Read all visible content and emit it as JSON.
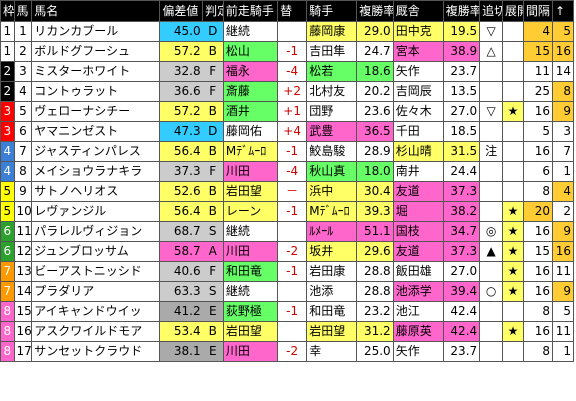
{
  "header": [
    "枠",
    "馬",
    "馬名",
    "偏差値",
    "判定",
    "前走騎手",
    "替",
    "騎手",
    "複勝率",
    "厩舎",
    "複勝率",
    "追切",
    "展開",
    "間隔",
    "↑"
  ],
  "colors": {
    "waku": {
      "1": "#ffffff",
      "2": "#000000",
      "3": "#ff0000",
      "4": "#3b7fd6",
      "5": "#ffff00",
      "6": "#2ca02c",
      "7": "#ff9900",
      "8": "#ff66cc"
    },
    "score": {
      "D": "#33ccff",
      "B": "#ffff66",
      "E": "#aaaaaa",
      "A": "#ff66cc"
    },
    "prev_green": "#66ff66",
    "prev_pink": "#ff66cc",
    "jockey_yellow": "#ffff66",
    "jockey_pink": "#ff66cc",
    "trainer_yellow": "#ffff66",
    "trainer_pink": "#ff66cc",
    "maru_yellow": "#ffff66",
    "kankaku_orange": "#ffcc33",
    "kankaku_blue": "#33ccff",
    "up_yellow": "#ffff66"
  },
  "rows": [
    {
      "waku": "1",
      "ban": "1",
      "name": "リカンカブール",
      "dev": "45.0",
      "grade": "D",
      "prev": "継続",
      "prev_bg": "",
      "sw": "",
      "jockey": "藤岡康",
      "j_bg": "yellow",
      "jrate": "29.0",
      "trainer": "田中克",
      "t_bg": "yellow",
      "trate": "19.5",
      "oi": "▽",
      "ten": "",
      "kan": "4",
      "kan_bg": "yellow",
      "up": "5",
      "up_bg": "orange"
    },
    {
      "waku": "1",
      "ban": "2",
      "name": "ボルドグフーシュ",
      "dev": "57.2",
      "grade": "B",
      "prev": "松山",
      "prev_bg": "green",
      "sw": "-1",
      "jockey": "吉田隼",
      "j_bg": "",
      "jrate": "24.7",
      "trainer": "宮本",
      "t_bg": "pink",
      "trate": "38.9",
      "oi": "△",
      "ten": "",
      "kan": "15",
      "kan_bg": "yellow",
      "up": "16",
      "up_bg": "orange"
    },
    {
      "waku": "2",
      "ban": "3",
      "name": "ミスターホワイト",
      "dev": "32.8",
      "grade": "F",
      "prev": "福永",
      "prev_bg": "pink",
      "sw": "-4",
      "jockey": "松若",
      "j_bg": "green",
      "jrate": "18.6",
      "trainer": "矢作",
      "t_bg": "",
      "trate": "23.7",
      "oi": "",
      "ten": "",
      "kan": "11",
      "kan_bg": "",
      "up": "14",
      "up_bg": ""
    },
    {
      "waku": "2",
      "ban": "4",
      "name": "コントゥラット",
      "dev": "36.6",
      "grade": "F",
      "prev": "斎藤",
      "prev_bg": "green",
      "sw": "+2",
      "jockey": "北村友",
      "j_bg": "",
      "jrate": "20.2",
      "trainer": "吉岡辰",
      "t_bg": "",
      "trate": "13.5",
      "oi": "",
      "ten": "",
      "kan": "25",
      "kan_bg": "",
      "up": "8",
      "up_bg": "orange"
    },
    {
      "waku": "3",
      "ban": "5",
      "name": "ヴェローナシチー",
      "dev": "57.2",
      "grade": "B",
      "prev": "酒井",
      "prev_bg": "green",
      "sw": "+1",
      "jockey": "団野",
      "j_bg": "",
      "jrate": "23.6",
      "trainer": "佐々木",
      "t_bg": "",
      "trate": "27.0",
      "oi": "▽",
      "ten": "★",
      "kan": "16",
      "kan_bg": "",
      "up": "9",
      "up_bg": "orange"
    },
    {
      "waku": "3",
      "ban": "6",
      "name": "ヤマニンゼスト",
      "dev": "47.3",
      "grade": "D",
      "prev": "藤岡佑",
      "prev_bg": "",
      "sw": "+4",
      "jockey": "武豊",
      "j_bg": "pink",
      "jrate": "36.5",
      "trainer": "千田",
      "t_bg": "",
      "trate": "18.5",
      "oi": "",
      "ten": "",
      "kan": "5",
      "kan_bg": "",
      "up": "3",
      "up_bg": ""
    },
    {
      "waku": "4",
      "ban": "7",
      "name": "ジャスティンパレス",
      "dev": "56.4",
      "grade": "B",
      "prev": "Mﾃﾞﾑｰﾛ",
      "prev_bg": "yellow",
      "sw": "-1",
      "jockey": "鮫島駿",
      "j_bg": "",
      "jrate": "28.9",
      "trainer": "杉山晴",
      "t_bg": "yellow",
      "trate": "31.5",
      "oi": "注",
      "ten": "",
      "kan": "16",
      "kan_bg": "",
      "up": "7",
      "up_bg": ""
    },
    {
      "waku": "4",
      "ban": "8",
      "name": "メイショウラナキラ",
      "dev": "37.3",
      "grade": "F",
      "prev": "川田",
      "prev_bg": "pink",
      "sw": "-4",
      "jockey": "秋山真",
      "j_bg": "green",
      "jrate": "18.0",
      "trainer": "南井",
      "t_bg": "",
      "trate": "24.4",
      "oi": "",
      "ten": "",
      "kan": "6",
      "kan_bg": "",
      "up": "1",
      "up_bg": ""
    },
    {
      "waku": "5",
      "ban": "9",
      "name": "サトノヘリオス",
      "dev": "52.6",
      "grade": "B",
      "prev": "岩田望",
      "prev_bg": "yellow",
      "sw": "－",
      "jockey": "浜中",
      "j_bg": "yellow",
      "jrate": "30.4",
      "trainer": "友道",
      "t_bg": "pink",
      "trate": "37.3",
      "oi": "",
      "ten": "",
      "kan": "8",
      "kan_bg": "",
      "up": "4",
      "up_bg": "orange"
    },
    {
      "waku": "5",
      "ban": "10",
      "name": "レヴァンジル",
      "dev": "56.4",
      "grade": "B",
      "prev": "レーン",
      "prev_bg": "yellow",
      "sw": "-1",
      "jockey": "Mﾃﾞﾑｰﾛ",
      "j_bg": "yellow",
      "jrate": "39.3",
      "trainer": "堀",
      "t_bg": "pink",
      "trate": "38.2",
      "oi": "",
      "ten": "★",
      "kan": "20",
      "kan_bg": "yellow",
      "up": "2",
      "up_bg": ""
    },
    {
      "waku": "6",
      "ban": "11",
      "name": "パラレルヴィジョン",
      "dev": "68.7",
      "grade": "S",
      "prev": "継続",
      "prev_bg": "",
      "sw": "",
      "jockey": "ﾙﾒｰﾙ",
      "j_bg": "pink",
      "jrate": "51.1",
      "trainer": "国枝",
      "t_bg": "pink",
      "trate": "34.7",
      "oi": "◎",
      "ten": "★",
      "kan": "16",
      "kan_bg": "",
      "up": "9",
      "up_bg": "orange"
    },
    {
      "waku": "6",
      "ban": "12",
      "name": "ジュンブロッサム",
      "dev": "58.7",
      "grade": "A",
      "prev": "川田",
      "prev_bg": "pink",
      "sw": "-2",
      "jockey": "坂井",
      "j_bg": "yellow",
      "jrate": "29.6",
      "trainer": "友道",
      "t_bg": "pink",
      "trate": "37.3",
      "oi": "▲",
      "ten": "★",
      "kan": "15",
      "kan_bg": "",
      "up": "16",
      "up_bg": "orange"
    },
    {
      "waku": "7",
      "ban": "13",
      "name": "ビーアストニッシド",
      "dev": "40.6",
      "grade": "F",
      "prev": "和田竜",
      "prev_bg": "green",
      "sw": "-1",
      "jockey": "岩田康",
      "j_bg": "",
      "jrate": "28.8",
      "trainer": "飯田雄",
      "t_bg": "",
      "trate": "27.0",
      "oi": "",
      "ten": "★",
      "kan": "16",
      "kan_bg": "",
      "up": "11",
      "up_bg": ""
    },
    {
      "waku": "7",
      "ban": "14",
      "name": "プラダリア",
      "dev": "63.3",
      "grade": "S",
      "prev": "継続",
      "prev_bg": "",
      "sw": "",
      "jockey": "池添",
      "j_bg": "",
      "jrate": "28.8",
      "trainer": "池添学",
      "t_bg": "pink",
      "trate": "39.4",
      "oi": "○",
      "ten": "★",
      "kan": "16",
      "kan_bg": "",
      "up": "9",
      "up_bg": "orange"
    },
    {
      "waku": "8",
      "ban": "15",
      "name": "アイキャンドウイッ",
      "dev": "41.2",
      "grade": "E",
      "prev": "荻野極",
      "prev_bg": "green",
      "sw": "-1",
      "jockey": "和田竜",
      "j_bg": "",
      "jrate": "23.2",
      "trainer": "池江",
      "t_bg": "",
      "trate": "42.4",
      "oi": "",
      "ten": "",
      "kan": "8",
      "kan_bg": "",
      "up": "5",
      "up_bg": ""
    },
    {
      "waku": "8",
      "ban": "16",
      "name": "アスクワイルドモア",
      "dev": "53.4",
      "grade": "B",
      "prev": "岩田望",
      "prev_bg": "yellow",
      "sw": "",
      "jockey": "岩田望",
      "j_bg": "yellow",
      "jrate": "31.2",
      "trainer": "藤原英",
      "t_bg": "pink",
      "trate": "42.4",
      "oi": "",
      "ten": "★",
      "kan": "16",
      "kan_bg": "",
      "up": "11",
      "up_bg": ""
    },
    {
      "waku": "8",
      "ban": "17",
      "name": "サンセットクラウド",
      "dev": "38.1",
      "grade": "E",
      "prev": "川田",
      "prev_bg": "pink",
      "sw": "-2",
      "jockey": "幸",
      "j_bg": "",
      "jrate": "25.0",
      "trainer": "矢作",
      "t_bg": "",
      "trate": "23.7",
      "oi": "",
      "ten": "",
      "kan": "8",
      "kan_bg": "",
      "up": "1",
      "up_bg": ""
    }
  ]
}
